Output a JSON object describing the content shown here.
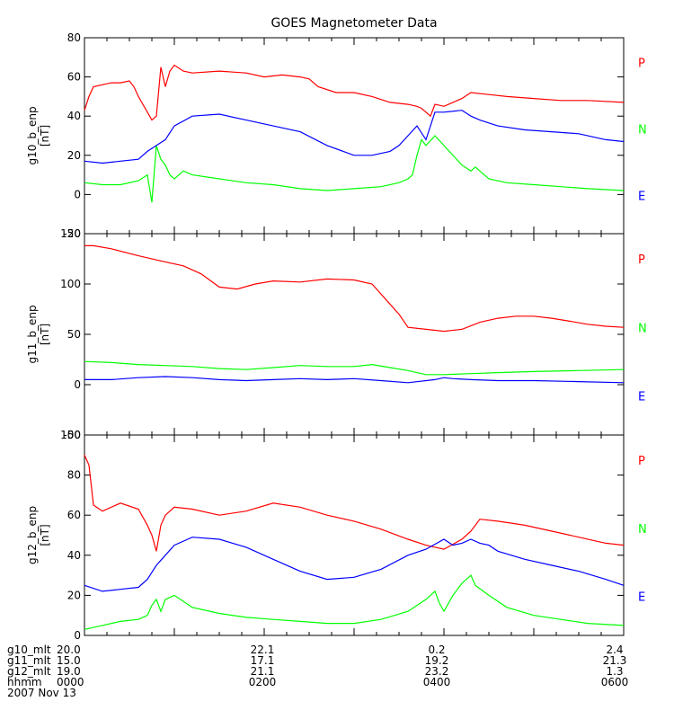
{
  "title": "GOES Magnetometer Data",
  "colors": {
    "P": "#ff0000",
    "N": "#00ff00",
    "E": "#0000ff",
    "axis": "#000000"
  },
  "chart_data": [
    {
      "type": "line",
      "id": "g10",
      "ylabel_line1": "g10_b_enp",
      "ylabel_line2": "[nT]",
      "ylim": [
        -20,
        80
      ],
      "yticks": [
        -20,
        0,
        20,
        40,
        60,
        80
      ],
      "xlim": [
        0,
        6
      ],
      "legend": [
        "P",
        "N",
        "E"
      ],
      "series": [
        {
          "name": "P",
          "x": [
            0,
            0.05,
            0.1,
            0.2,
            0.3,
            0.4,
            0.5,
            0.55,
            0.6,
            0.7,
            0.75,
            0.8,
            0.85,
            0.9,
            0.95,
            1.0,
            1.1,
            1.2,
            1.5,
            1.8,
            2.0,
            2.2,
            2.4,
            2.5,
            2.6,
            2.8,
            3.0,
            3.2,
            3.4,
            3.6,
            3.7,
            3.75,
            3.8,
            3.85,
            3.9,
            4.0,
            4.1,
            4.2,
            4.3,
            4.5,
            4.7,
            5.0,
            5.3,
            5.6,
            6.0
          ],
          "values": [
            43,
            50,
            55,
            56,
            57,
            57,
            58,
            55,
            50,
            42,
            38,
            40,
            65,
            55,
            63,
            66,
            63,
            62,
            63,
            62,
            60,
            61,
            60,
            59,
            55,
            52,
            52,
            50,
            47,
            46,
            45,
            44,
            42,
            40,
            46,
            45,
            47,
            49,
            52,
            51,
            50,
            49,
            48,
            48,
            47
          ]
        },
        {
          "name": "N",
          "x": [
            0,
            0.2,
            0.4,
            0.6,
            0.7,
            0.75,
            0.8,
            0.85,
            0.9,
            0.95,
            1.0,
            1.1,
            1.2,
            1.5,
            1.8,
            2.1,
            2.4,
            2.7,
            3.0,
            3.3,
            3.5,
            3.6,
            3.65,
            3.7,
            3.75,
            3.8,
            3.9,
            4.0,
            4.2,
            4.3,
            4.35,
            4.5,
            4.7,
            5.0,
            5.3,
            5.6,
            6.0
          ],
          "values": [
            6,
            5,
            5,
            7,
            10,
            -4,
            25,
            18,
            15,
            10,
            8,
            12,
            10,
            8,
            6,
            5,
            3,
            2,
            3,
            4,
            6,
            8,
            10,
            20,
            28,
            25,
            30,
            25,
            15,
            12,
            14,
            8,
            6,
            5,
            4,
            3,
            2
          ]
        },
        {
          "name": "E",
          "x": [
            0,
            0.2,
            0.4,
            0.6,
            0.7,
            0.8,
            0.9,
            1.0,
            1.2,
            1.5,
            1.8,
            2.1,
            2.4,
            2.7,
            3.0,
            3.2,
            3.4,
            3.5,
            3.6,
            3.7,
            3.8,
            3.9,
            4.0,
            4.2,
            4.3,
            4.4,
            4.6,
            4.9,
            5.2,
            5.5,
            5.8,
            6.0
          ],
          "values": [
            17,
            16,
            17,
            18,
            22,
            25,
            28,
            35,
            40,
            41,
            38,
            35,
            32,
            25,
            20,
            20,
            22,
            25,
            30,
            35,
            28,
            42,
            42,
            43,
            40,
            38,
            35,
            33,
            32,
            31,
            28,
            27
          ]
        }
      ]
    },
    {
      "type": "line",
      "id": "g11",
      "ylabel_line1": "g11_b_enp",
      "ylabel_line2": "[nT]",
      "ylim": [
        -50,
        150
      ],
      "yticks": [
        -50,
        0,
        50,
        100,
        150
      ],
      "xlim": [
        0,
        6
      ],
      "legend": [
        "P",
        "N",
        "E"
      ],
      "series": [
        {
          "name": "P",
          "x": [
            0,
            0.1,
            0.3,
            0.6,
            0.9,
            1.1,
            1.3,
            1.5,
            1.7,
            1.9,
            2.1,
            2.4,
            2.7,
            3.0,
            3.2,
            3.35,
            3.5,
            3.6,
            3.8,
            4.0,
            4.2,
            4.4,
            4.6,
            4.8,
            5.0,
            5.2,
            5.4,
            5.6,
            5.8,
            6.0
          ],
          "values": [
            138,
            138,
            135,
            128,
            122,
            118,
            110,
            97,
            95,
            100,
            103,
            102,
            105,
            104,
            100,
            85,
            70,
            57,
            55,
            53,
            55,
            62,
            66,
            68,
            68,
            66,
            63,
            60,
            58,
            57
          ]
        },
        {
          "name": "N",
          "x": [
            0,
            0.3,
            0.6,
            0.9,
            1.2,
            1.5,
            1.8,
            2.1,
            2.4,
            2.7,
            3.0,
            3.2,
            3.4,
            3.6,
            3.8,
            4.0,
            4.3,
            4.6,
            5.0,
            5.5,
            6.0
          ],
          "values": [
            23,
            22,
            20,
            19,
            18,
            16,
            15,
            17,
            19,
            18,
            18,
            20,
            17,
            14,
            10,
            10,
            11,
            12,
            13,
            14,
            15
          ]
        },
        {
          "name": "E",
          "x": [
            0,
            0.3,
            0.6,
            0.9,
            1.2,
            1.5,
            1.8,
            2.1,
            2.4,
            2.7,
            3.0,
            3.3,
            3.6,
            3.9,
            4.0,
            4.1,
            4.3,
            4.6,
            5.0,
            5.5,
            6.0
          ],
          "values": [
            5,
            5,
            7,
            8,
            7,
            5,
            4,
            5,
            6,
            5,
            6,
            4,
            2,
            5,
            7,
            6,
            5,
            4,
            4,
            3,
            2
          ]
        }
      ]
    },
    {
      "type": "line",
      "id": "g12",
      "ylabel_line1": "g12_b_enp",
      "ylabel_line2": "[nT]",
      "ylim": [
        0,
        100
      ],
      "yticks": [
        0,
        20,
        40,
        60,
        80,
        100
      ],
      "xlim": [
        0,
        6
      ],
      "legend": [
        "P",
        "N",
        "E"
      ],
      "series": [
        {
          "name": "P",
          "x": [
            0,
            0.05,
            0.1,
            0.2,
            0.4,
            0.6,
            0.7,
            0.75,
            0.8,
            0.85,
            0.9,
            1.0,
            1.2,
            1.5,
            1.8,
            2.1,
            2.4,
            2.7,
            3.0,
            3.3,
            3.6,
            3.8,
            4.0,
            4.2,
            4.3,
            4.4,
            4.6,
            4.9,
            5.2,
            5.5,
            5.8,
            6.0
          ],
          "values": [
            90,
            85,
            65,
            62,
            66,
            63,
            55,
            50,
            42,
            55,
            60,
            64,
            63,
            60,
            62,
            66,
            64,
            60,
            57,
            53,
            48,
            45,
            43,
            48,
            52,
            58,
            57,
            55,
            52,
            49,
            46,
            45
          ]
        },
        {
          "name": "N",
          "x": [
            0,
            0.2,
            0.4,
            0.6,
            0.7,
            0.75,
            0.8,
            0.85,
            0.9,
            1.0,
            1.1,
            1.2,
            1.5,
            1.8,
            2.1,
            2.4,
            2.7,
            3.0,
            3.3,
            3.6,
            3.8,
            3.9,
            3.95,
            4.0,
            4.1,
            4.2,
            4.3,
            4.35,
            4.5,
            4.7,
            5.0,
            5.3,
            5.6,
            6.0
          ],
          "values": [
            3,
            5,
            7,
            8,
            10,
            15,
            18,
            12,
            18,
            20,
            17,
            14,
            11,
            9,
            8,
            7,
            6,
            6,
            8,
            12,
            18,
            22,
            16,
            12,
            20,
            26,
            30,
            25,
            20,
            14,
            10,
            8,
            6,
            5
          ]
        },
        {
          "name": "E",
          "x": [
            0,
            0.2,
            0.4,
            0.6,
            0.7,
            0.8,
            0.9,
            1.0,
            1.2,
            1.5,
            1.8,
            2.1,
            2.4,
            2.7,
            3.0,
            3.3,
            3.6,
            3.8,
            4.0,
            4.1,
            4.2,
            4.3,
            4.4,
            4.5,
            4.6,
            4.9,
            5.2,
            5.5,
            5.8,
            6.0
          ],
          "values": [
            25,
            22,
            23,
            24,
            28,
            35,
            40,
            45,
            49,
            48,
            44,
            38,
            32,
            28,
            29,
            33,
            40,
            43,
            48,
            45,
            46,
            48,
            46,
            45,
            42,
            38,
            35,
            32,
            28,
            25
          ]
        }
      ]
    }
  ],
  "bottom_axis": {
    "rows": [
      {
        "label": "g10_mlt",
        "values": [
          "20.0",
          "22.1",
          "0.2",
          "2.4"
        ]
      },
      {
        "label": "g11_mlt",
        "values": [
          "15.0",
          "17.1",
          "19.2",
          "21.3"
        ]
      },
      {
        "label": "g12_mlt",
        "values": [
          "19.0",
          "21.1",
          "23.2",
          "1.3"
        ]
      },
      {
        "label": "hhmm",
        "values": [
          "0000",
          "0200",
          "0400",
          "0600"
        ]
      }
    ],
    "date": "2007 Nov 13"
  }
}
